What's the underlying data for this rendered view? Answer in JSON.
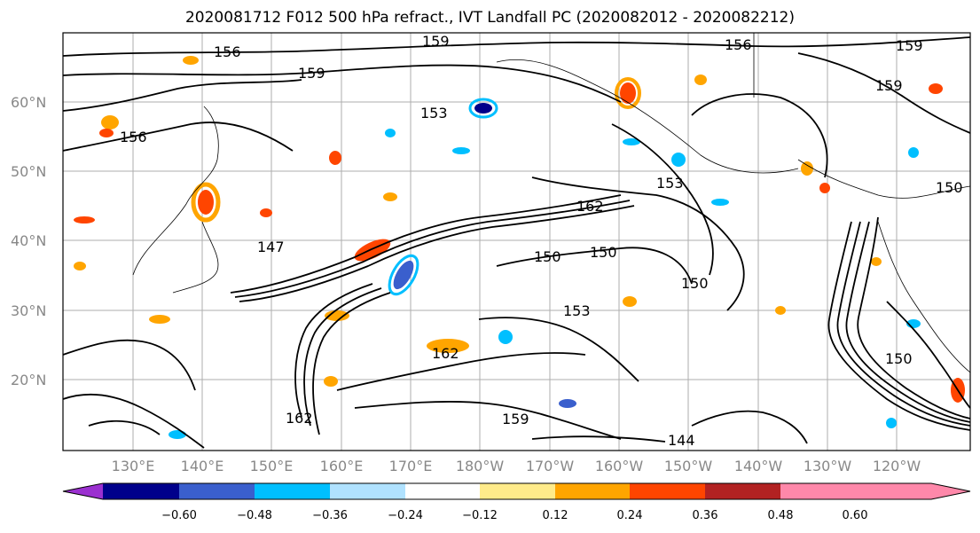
{
  "title": "2020081712 F012 500 hPa refract., IVT Landfall PC (2020082012 - 2020082212)",
  "map": {
    "lat_labels": [
      "60°N",
      "50°N",
      "40°N",
      "30°N",
      "20°N"
    ],
    "lon_labels": [
      "130°E",
      "140°E",
      "150°E",
      "160°E",
      "170°E",
      "180°W",
      "170°W",
      "160°W",
      "150°W",
      "140°W",
      "130°W",
      "120°W"
    ],
    "contour_labels": [
      "156",
      "159",
      "159",
      "156",
      "159",
      "156",
      "153",
      "153",
      "150",
      "150",
      "150",
      "150",
      "147",
      "162",
      "162",
      "159",
      "162",
      "144",
      "159",
      "153",
      "150"
    ]
  },
  "colorbar": {
    "ticks": [
      "−0.60",
      "−0.48",
      "−0.36",
      "−0.24",
      "−0.12",
      "0.12",
      "0.24",
      "0.36",
      "0.48",
      "0.60"
    ],
    "colors": [
      "#9b30d0",
      "#00008b",
      "#3a5fcd",
      "#00bfff",
      "#b0e2ff",
      "#ffffff",
      "#ffeb8a",
      "#ffa500",
      "#ff4500",
      "#b22222",
      "#ff88aa"
    ]
  }
}
